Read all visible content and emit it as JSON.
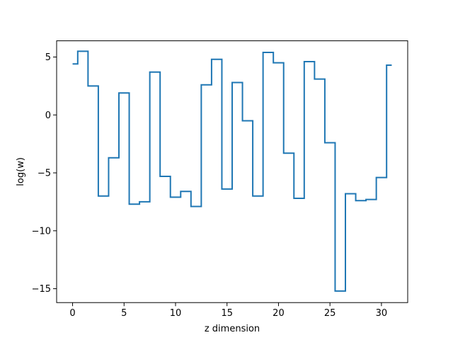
{
  "chart_data": {
    "type": "line",
    "drawstyle": "steps-mid",
    "xlabel": "z dimension",
    "ylabel": "log(w)",
    "xlim": [
      -1.55,
      32.55
    ],
    "ylim": [
      -16.2,
      6.4
    ],
    "xticks": [
      0,
      5,
      10,
      15,
      20,
      25,
      30
    ],
    "yticks": [
      -15,
      -10,
      -5,
      0,
      5
    ],
    "xtick_labels": [
      "0",
      "5",
      "10",
      "15",
      "20",
      "25",
      "30"
    ],
    "ytick_labels": [
      "−15",
      "−10",
      "−5",
      "0",
      "5"
    ],
    "grid": false,
    "line_color": "#1f77b4",
    "series": [
      {
        "x": [
          0,
          1,
          2,
          3,
          4,
          5,
          6,
          7,
          8,
          9,
          10,
          11,
          12,
          13,
          14,
          15,
          16,
          17,
          18,
          19,
          20,
          21,
          22,
          23,
          24,
          25,
          26,
          27,
          28,
          29,
          30,
          31
        ],
        "y": [
          4.4,
          5.5,
          2.5,
          -7.0,
          -3.7,
          1.9,
          -7.7,
          -7.5,
          3.7,
          -5.3,
          -7.1,
          -6.6,
          -7.9,
          2.6,
          4.8,
          -6.4,
          2.8,
          -0.5,
          -7.0,
          5.4,
          4.5,
          -3.3,
          -7.2,
          4.6,
          3.1,
          -2.4,
          -15.2,
          -6.8,
          -7.4,
          -7.3,
          -5.4,
          4.3
        ]
      }
    ]
  }
}
